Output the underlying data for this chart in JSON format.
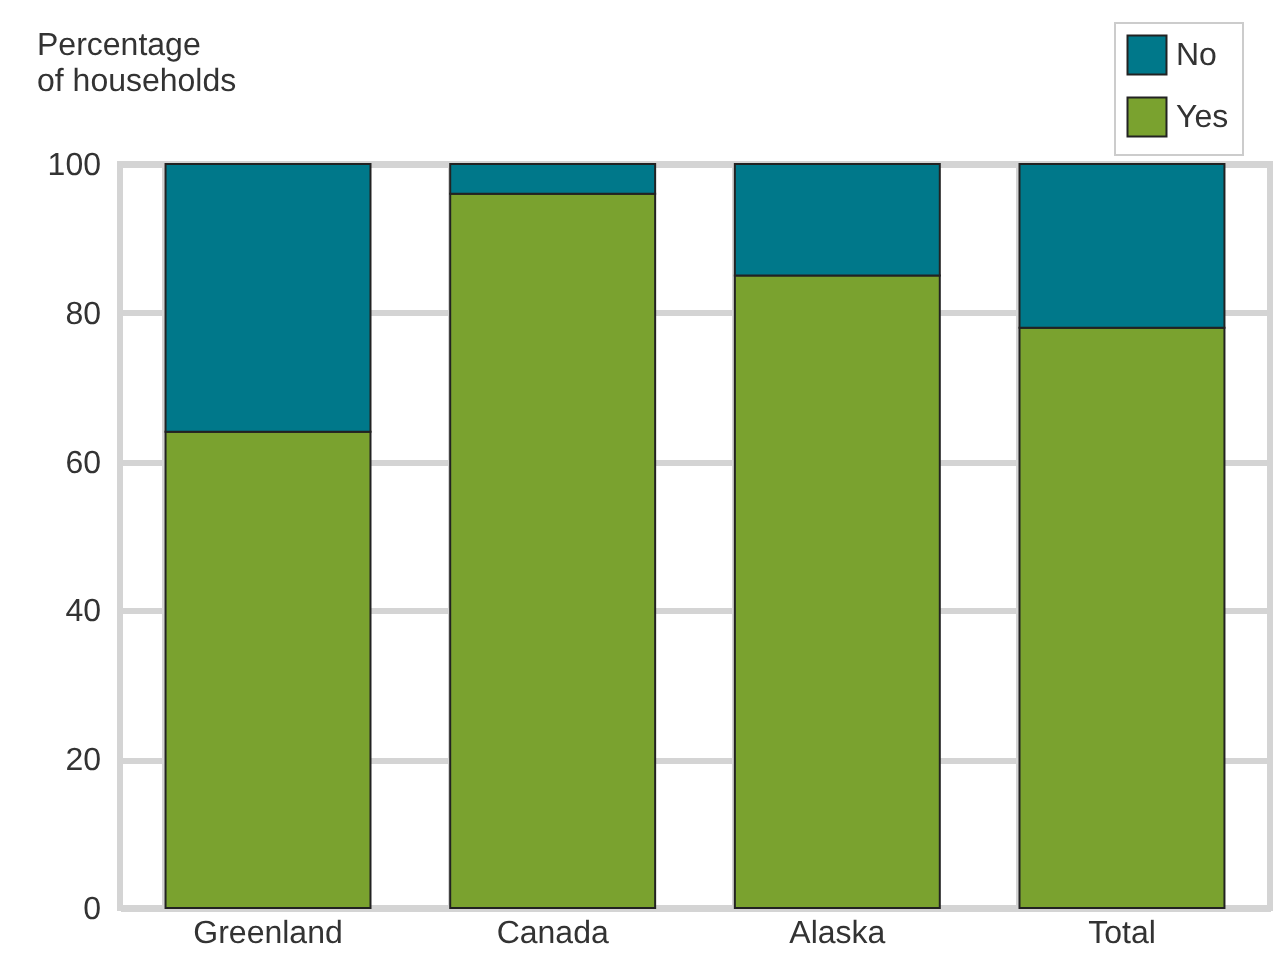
{
  "chart_data": {
    "type": "bar",
    "ylabel": "Percentage of households",
    "categories": [
      "Greenland",
      "Canada",
      "Alaska",
      "Total"
    ],
    "series": [
      {
        "name": "Yes",
        "color": "#7aa22f",
        "values": [
          64,
          96,
          85,
          78
        ]
      },
      {
        "name": "No",
        "color": "#00788a",
        "values": [
          36,
          4,
          15,
          22
        ]
      }
    ],
    "stacked": true,
    "ylim": [
      0,
      100
    ],
    "yticks": [
      0,
      20,
      40,
      60,
      80,
      100
    ],
    "grid": true,
    "legend": "top right"
  }
}
